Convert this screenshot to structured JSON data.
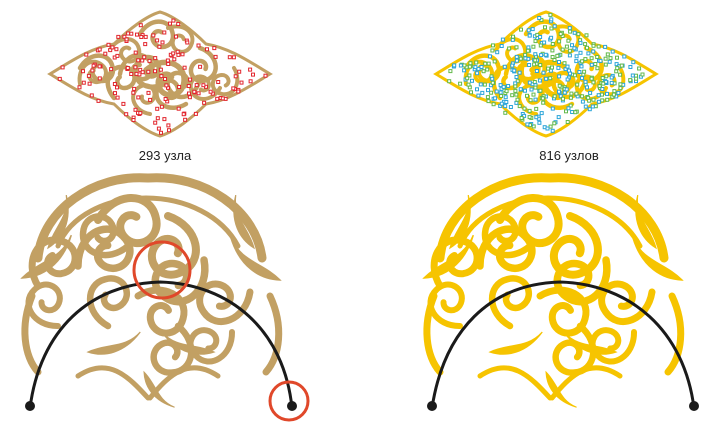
{
  "left_panel": {
    "node_count_label": "293 узла",
    "ornament_color": "#C2A063",
    "node_marker_color": "#E2262E",
    "highlight_circle_color": "#E0482A",
    "arc_color": "#1A1A1A"
  },
  "right_panel": {
    "node_count_label": "816 узлов",
    "ornament_color": "#F6C400",
    "node_marker_color": "#2BA5D9",
    "node_marker_alt_color": "#63B94A",
    "arc_color": "#1A1A1A"
  }
}
